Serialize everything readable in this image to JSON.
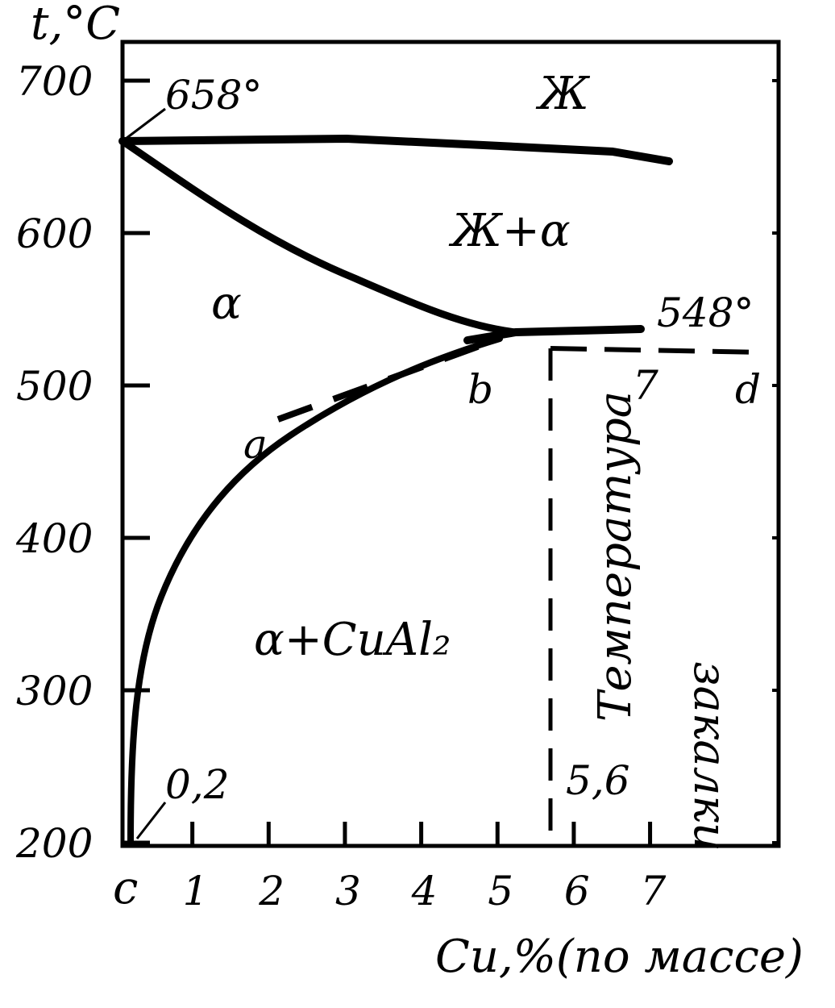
{
  "y_axis": {
    "title": "t,°C",
    "ticks": [
      {
        "value": 700,
        "label": "700"
      },
      {
        "value": 600,
        "label": "600"
      },
      {
        "value": 500,
        "label": "500"
      },
      {
        "value": 400,
        "label": "400"
      },
      {
        "value": 300,
        "label": "300"
      },
      {
        "value": 200,
        "label": "200"
      }
    ],
    "range": [
      200,
      700
    ]
  },
  "x_axis": {
    "title": "Cu,%(по массе)",
    "ticks": [
      {
        "value": 1,
        "label": "1"
      },
      {
        "value": 2,
        "label": "2"
      },
      {
        "value": 3,
        "label": "3"
      },
      {
        "value": 4,
        "label": "4"
      },
      {
        "value": 5,
        "label": "5"
      },
      {
        "value": 6,
        "label": "6"
      },
      {
        "value": 7,
        "label": "7"
      }
    ],
    "origin_label": "c",
    "range": [
      0,
      8.6
    ]
  },
  "regions": {
    "liquid": "Ж",
    "liquid_alpha": "Ж+α",
    "alpha": "α",
    "alpha_cual2": "α+CuAl₂"
  },
  "points": {
    "al_melting": "658°",
    "eutectic": "548°",
    "solubility_min": "0,2",
    "eutectic_composition": "5,6",
    "a": "a",
    "b": "b",
    "d": "d",
    "seven": "7"
  },
  "annotation": {
    "line1": "Температура",
    "line2": "закалки"
  },
  "chart_data": {
    "type": "line",
    "xlabel": "Cu,%(по массе)",
    "ylabel": "t,°C",
    "xlim": [
      0,
      8.6
    ],
    "ylim": [
      200,
      700
    ],
    "series": [
      {
        "x": [
          0,
          2,
          4,
          6,
          7
        ],
        "y": [
          658,
          656,
          652,
          648,
          642
        ]
      },
      {
        "x": [
          0,
          1,
          2,
          3,
          4,
          4.7,
          5.6
        ],
        "y": [
          658,
          618,
          590,
          568,
          552,
          545,
          548
        ]
      },
      {
        "x": [
          4.7,
          5.6,
          6.8
        ],
        "y": [
          545,
          548,
          548
        ]
      },
      {
        "x": [
          0.05,
          0.1,
          0.2,
          0.5,
          1,
          2,
          3,
          4,
          4.7
        ],
        "y": [
          200,
          250,
          300,
          350,
          390,
          440,
          478,
          510,
          530
        ]
      },
      {
        "x": [
          1.8,
          3,
          4,
          4.7
        ],
        "y": [
          455,
          490,
          515,
          530
        ]
      },
      {
        "x": [
          5.6,
          8.4
        ],
        "y": [
          525,
          525
        ]
      },
      {
        "x": [
          5.6,
          5.6
        ],
        "y": [
          200,
          525
        ]
      }
    ]
  }
}
